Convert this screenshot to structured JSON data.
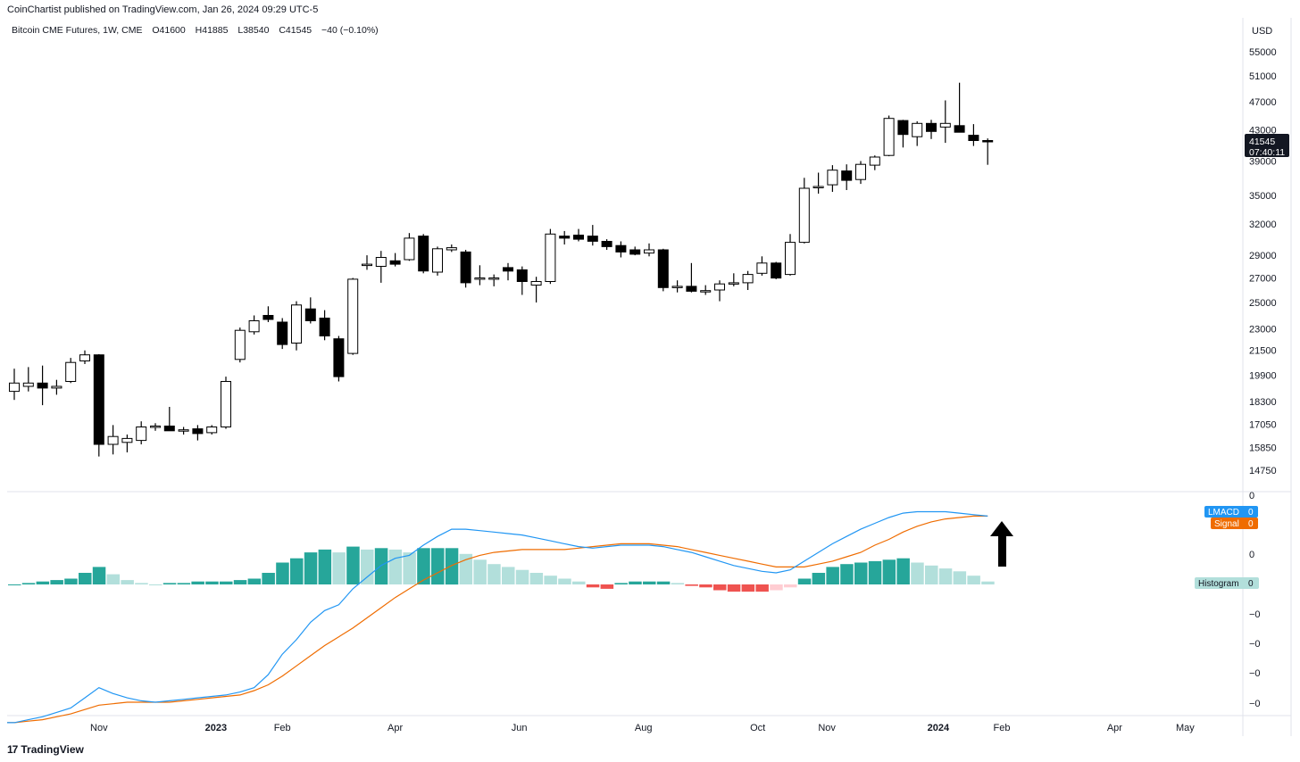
{
  "header": {
    "publisher": "CoinChartist published on TradingView.com, Jan 26, 2024 09:29 UTC-5",
    "symbol": "Bitcoin CME Futures, 1W, CME",
    "open": "O41600",
    "high": "H41885",
    "low": "L38540",
    "close": "C41545",
    "change": "−40 (−0.10%)"
  },
  "price_axis": {
    "currency": "USD",
    "current_price": "41545",
    "countdown": "07:40:11"
  },
  "indicator": {
    "lmacd_label": "LMACD",
    "lmacd_value": "0",
    "signal_label": "Signal",
    "signal_value": "0",
    "histogram_label": "Histogram",
    "histogram_value": "0",
    "axis_ticks": [
      "0",
      "0",
      "−0",
      "−0",
      "−0",
      "−0"
    ]
  },
  "footer": {
    "brand": "TradingView",
    "logo": "17"
  },
  "colors": {
    "lmacd": "#2196f3",
    "signal": "#ef6c00",
    "hist_pos_strong": "#26a69a",
    "hist_pos_weak": "#b2dfdb",
    "hist_neg_strong": "#ef5350",
    "hist_neg_weak": "#ffcdd2",
    "candle_up": "#ffffff",
    "candle_down": "#000000"
  },
  "chart_data": [
    {
      "type": "candlestick",
      "scale": "log",
      "y_ticks": [
        14750,
        15850,
        17050,
        18300,
        19900,
        21500,
        23000,
        25000,
        27000,
        29000,
        32000,
        35000,
        39000,
        43000,
        47000,
        51000,
        55000
      ],
      "x_labels": [
        {
          "label": "Nov",
          "i": 6,
          "bold": false
        },
        {
          "label": "2023",
          "i": 14.3,
          "bold": true
        },
        {
          "label": "Feb",
          "i": 19,
          "bold": false
        },
        {
          "label": "Apr",
          "i": 27,
          "bold": false
        },
        {
          "label": "Jun",
          "i": 35.8,
          "bold": false
        },
        {
          "label": "Aug",
          "i": 44.6,
          "bold": false
        },
        {
          "label": "Oct",
          "i": 52.7,
          "bold": false
        },
        {
          "label": "Nov",
          "i": 57.6,
          "bold": false
        },
        {
          "label": "2024",
          "i": 65.5,
          "bold": true
        },
        {
          "label": "Feb",
          "i": 70,
          "bold": false
        },
        {
          "label": "Apr",
          "i": 78,
          "bold": false
        },
        {
          "label": "May",
          "i": 83,
          "bold": false
        }
      ],
      "candles": [
        {
          "o": 18900,
          "h": 20300,
          "l": 18400,
          "c": 19400
        },
        {
          "o": 19200,
          "h": 20400,
          "l": 18900,
          "c": 19400
        },
        {
          "o": 19400,
          "h": 20500,
          "l": 18100,
          "c": 19100
        },
        {
          "o": 19100,
          "h": 19600,
          "l": 18700,
          "c": 19200
        },
        {
          "o": 19500,
          "h": 21000,
          "l": 19400,
          "c": 20700
        },
        {
          "o": 20800,
          "h": 21500,
          "l": 20600,
          "c": 21200
        },
        {
          "o": 21200,
          "h": 21250,
          "l": 15400,
          "c": 16000
        },
        {
          "o": 16000,
          "h": 17000,
          "l": 15500,
          "c": 16400
        },
        {
          "o": 16100,
          "h": 16500,
          "l": 15600,
          "c": 16300
        },
        {
          "o": 16200,
          "h": 17200,
          "l": 16000,
          "c": 16900
        },
        {
          "o": 16900,
          "h": 17100,
          "l": 16700,
          "c": 16950
        },
        {
          "o": 16950,
          "h": 18000,
          "l": 16700,
          "c": 16700
        },
        {
          "o": 16700,
          "h": 16900,
          "l": 16500,
          "c": 16750
        },
        {
          "o": 16800,
          "h": 17000,
          "l": 16200,
          "c": 16550
        },
        {
          "o": 16600,
          "h": 17000,
          "l": 16500,
          "c": 16900
        },
        {
          "o": 16900,
          "h": 19800,
          "l": 16800,
          "c": 19500
        },
        {
          "o": 20900,
          "h": 23100,
          "l": 20700,
          "c": 22900
        },
        {
          "o": 22800,
          "h": 24000,
          "l": 22600,
          "c": 23600
        },
        {
          "o": 24000,
          "h": 24700,
          "l": 23500,
          "c": 23700
        },
        {
          "o": 23500,
          "h": 23800,
          "l": 21600,
          "c": 21900
        },
        {
          "o": 22000,
          "h": 25100,
          "l": 21500,
          "c": 24800
        },
        {
          "o": 24500,
          "h": 25400,
          "l": 23400,
          "c": 23600
        },
        {
          "o": 23800,
          "h": 24400,
          "l": 22200,
          "c": 22500
        },
        {
          "o": 22300,
          "h": 22500,
          "l": 19500,
          "c": 19800
        },
        {
          "o": 21300,
          "h": 27000,
          "l": 21200,
          "c": 26900
        },
        {
          "o": 28100,
          "h": 29000,
          "l": 27700,
          "c": 28200
        },
        {
          "o": 28000,
          "h": 29400,
          "l": 26600,
          "c": 28800
        },
        {
          "o": 28500,
          "h": 29200,
          "l": 28000,
          "c": 28200
        },
        {
          "o": 28600,
          "h": 31100,
          "l": 28500,
          "c": 30600
        },
        {
          "o": 30800,
          "h": 31000,
          "l": 27400,
          "c": 27600
        },
        {
          "o": 27500,
          "h": 29800,
          "l": 27200,
          "c": 29600
        },
        {
          "o": 29500,
          "h": 30000,
          "l": 29300,
          "c": 29700
        },
        {
          "o": 29300,
          "h": 29500,
          "l": 26200,
          "c": 26600
        },
        {
          "o": 27000,
          "h": 28100,
          "l": 26400,
          "c": 27000
        },
        {
          "o": 27000,
          "h": 27300,
          "l": 26300,
          "c": 27000
        },
        {
          "o": 27900,
          "h": 28300,
          "l": 26800,
          "c": 27600
        },
        {
          "o": 27700,
          "h": 28000,
          "l": 25600,
          "c": 26700
        },
        {
          "o": 26400,
          "h": 27100,
          "l": 25000,
          "c": 26700
        },
        {
          "o": 26700,
          "h": 31500,
          "l": 26500,
          "c": 31000
        },
        {
          "o": 30800,
          "h": 31300,
          "l": 30000,
          "c": 30600
        },
        {
          "o": 30900,
          "h": 31500,
          "l": 30300,
          "c": 30500
        },
        {
          "o": 30800,
          "h": 31900,
          "l": 29900,
          "c": 30300
        },
        {
          "o": 30300,
          "h": 30500,
          "l": 29500,
          "c": 29800
        },
        {
          "o": 29900,
          "h": 30300,
          "l": 28800,
          "c": 29300
        },
        {
          "o": 29500,
          "h": 29800,
          "l": 29000,
          "c": 29100
        },
        {
          "o": 29200,
          "h": 30100,
          "l": 28900,
          "c": 29500
        },
        {
          "o": 29500,
          "h": 29600,
          "l": 25900,
          "c": 26200
        },
        {
          "o": 26200,
          "h": 26800,
          "l": 25800,
          "c": 26300
        },
        {
          "o": 26300,
          "h": 28300,
          "l": 25800,
          "c": 25900
        },
        {
          "o": 25900,
          "h": 26400,
          "l": 25600,
          "c": 25950
        },
        {
          "o": 26000,
          "h": 26800,
          "l": 25100,
          "c": 26500
        },
        {
          "o": 26500,
          "h": 27400,
          "l": 26300,
          "c": 26600
        },
        {
          "o": 26600,
          "h": 27600,
          "l": 26000,
          "c": 27300
        },
        {
          "o": 27400,
          "h": 28900,
          "l": 27200,
          "c": 28300
        },
        {
          "o": 28300,
          "h": 28400,
          "l": 26900,
          "c": 27000
        },
        {
          "o": 27300,
          "h": 31000,
          "l": 27200,
          "c": 30200
        },
        {
          "o": 30200,
          "h": 37000,
          "l": 30100,
          "c": 35800
        },
        {
          "o": 36000,
          "h": 37600,
          "l": 35200,
          "c": 36000
        },
        {
          "o": 36200,
          "h": 38500,
          "l": 35400,
          "c": 37900
        },
        {
          "o": 37800,
          "h": 38600,
          "l": 35600,
          "c": 36700
        },
        {
          "o": 36800,
          "h": 39000,
          "l": 36300,
          "c": 38600
        },
        {
          "o": 38500,
          "h": 39700,
          "l": 37900,
          "c": 39500
        },
        {
          "o": 39700,
          "h": 45000,
          "l": 39600,
          "c": 44600
        },
        {
          "o": 44300,
          "h": 44400,
          "l": 40700,
          "c": 42400
        },
        {
          "o": 42100,
          "h": 44200,
          "l": 40900,
          "c": 43900
        },
        {
          "o": 43900,
          "h": 44400,
          "l": 41800,
          "c": 42800
        },
        {
          "o": 43400,
          "h": 47200,
          "l": 41300,
          "c": 43900
        },
        {
          "o": 43600,
          "h": 49900,
          "l": 42800,
          "c": 42700
        },
        {
          "o": 42300,
          "h": 43800,
          "l": 40900,
          "c": 41600
        },
        {
          "o": 41600,
          "h": 41885,
          "l": 38540,
          "c": 41545
        }
      ]
    },
    {
      "type": "line+histogram",
      "title": "LMACD",
      "series": [
        {
          "name": "LMACD",
          "values": [
            -0.95,
            -0.93,
            -0.91,
            -0.88,
            -0.85,
            -0.78,
            -0.71,
            -0.75,
            -0.78,
            -0.8,
            -0.81,
            -0.8,
            -0.79,
            -0.78,
            -0.77,
            -0.76,
            -0.74,
            -0.71,
            -0.62,
            -0.48,
            -0.38,
            -0.26,
            -0.18,
            -0.14,
            -0.03,
            0.05,
            0.13,
            0.18,
            0.2,
            0.27,
            0.33,
            0.38,
            0.38,
            0.37,
            0.36,
            0.35,
            0.34,
            0.32,
            0.3,
            0.28,
            0.26,
            0.25,
            0.26,
            0.27,
            0.27,
            0.27,
            0.26,
            0.24,
            0.22,
            0.19,
            0.16,
            0.13,
            0.11,
            0.09,
            0.08,
            0.1,
            0.16,
            0.22,
            0.28,
            0.33,
            0.38,
            0.42,
            0.46,
            0.49,
            0.5,
            0.5,
            0.5,
            0.49,
            0.48,
            0.47
          ]
        },
        {
          "name": "Signal",
          "values": [
            -0.95,
            -0.94,
            -0.93,
            -0.91,
            -0.89,
            -0.86,
            -0.83,
            -0.82,
            -0.81,
            -0.81,
            -0.81,
            -0.81,
            -0.8,
            -0.79,
            -0.78,
            -0.77,
            -0.76,
            -0.73,
            -0.69,
            -0.63,
            -0.56,
            -0.49,
            -0.42,
            -0.36,
            -0.3,
            -0.23,
            -0.16,
            -0.09,
            -0.03,
            0.03,
            0.08,
            0.13,
            0.17,
            0.2,
            0.22,
            0.23,
            0.24,
            0.24,
            0.24,
            0.24,
            0.25,
            0.26,
            0.27,
            0.28,
            0.28,
            0.28,
            0.27,
            0.26,
            0.24,
            0.22,
            0.2,
            0.18,
            0.16,
            0.14,
            0.12,
            0.12,
            0.12,
            0.14,
            0.16,
            0.19,
            0.22,
            0.27,
            0.31,
            0.36,
            0.4,
            0.43,
            0.45,
            0.46,
            0.47,
            0.47
          ]
        },
        {
          "name": "Histogram",
          "values": [
            0,
            0.01,
            0.02,
            0.03,
            0.04,
            0.08,
            0.12,
            0.07,
            0.03,
            0.01,
            0,
            0.01,
            0.01,
            0.02,
            0.02,
            0.02,
            0.03,
            0.04,
            0.08,
            0.15,
            0.18,
            0.22,
            0.24,
            0.22,
            0.26,
            0.24,
            0.25,
            0.24,
            0.22,
            0.25,
            0.25,
            0.25,
            0.21,
            0.17,
            0.14,
            0.12,
            0.1,
            0.08,
            0.06,
            0.04,
            0.02,
            -0.02,
            -0.03,
            0.01,
            0.02,
            0.02,
            0.02,
            0.01,
            -0.01,
            -0.02,
            -0.04,
            -0.05,
            -0.05,
            -0.05,
            -0.04,
            -0.02,
            0.04,
            0.08,
            0.12,
            0.14,
            0.15,
            0.16,
            0.17,
            0.18,
            0.15,
            0.13,
            0.11,
            0.09,
            0.06,
            0.02
          ]
        }
      ]
    }
  ]
}
